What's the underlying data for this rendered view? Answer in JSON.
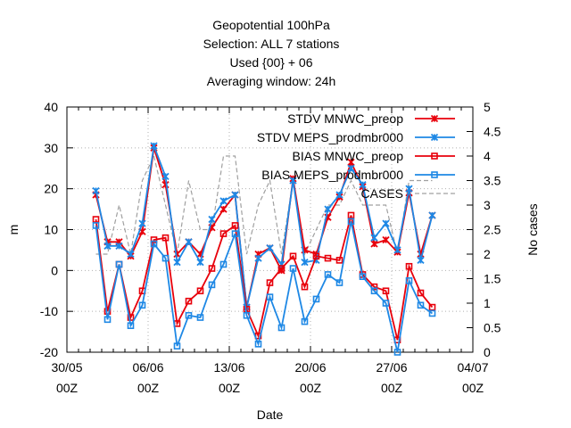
{
  "chart_data": {
    "type": "line",
    "title_lines": [
      "Geopotential 100hPa",
      "Selection: ALL      7 stations",
      "Used {00} + 06",
      "Averaging window: 24h"
    ],
    "xlabel": "Date",
    "ylabel": "m",
    "y2label": "No cases",
    "x_ticks": [
      {
        "d": 0,
        "l1": "30/05",
        "l2": "00Z"
      },
      {
        "d": 7,
        "l1": "06/06",
        "l2": "00Z"
      },
      {
        "d": 14,
        "l1": "13/06",
        "l2": "00Z"
      },
      {
        "d": 21,
        "l1": "20/06",
        "l2": "00Z"
      },
      {
        "d": 28,
        "l1": "27/06",
        "l2": "00Z"
      },
      {
        "d": 35,
        "l1": "04/07",
        "l2": "00Z"
      }
    ],
    "xlim": [
      0,
      35
    ],
    "ylim": [
      -20,
      40
    ],
    "y_ticks": [
      -20,
      -10,
      0,
      10,
      20,
      30,
      40
    ],
    "y2lim": [
      0,
      5
    ],
    "y2_ticks": [
      "0",
      "0.5",
      "1",
      "1.5",
      "2",
      "2.5",
      "3",
      "3.5",
      "4",
      "4.5",
      "5"
    ],
    "grid": true,
    "legend_position": "top-right",
    "x_days": [
      2.5,
      3.5,
      4.5,
      5.5,
      6.5,
      7.5,
      8.5,
      9.5,
      10.5,
      11.5,
      12.5,
      13.5,
      14.5,
      15.5,
      16.5,
      17.5,
      18.5,
      19.5,
      20.5,
      21.5,
      22.5,
      23.5,
      24.5,
      25.5,
      26.5,
      27.5,
      28.5,
      29.5,
      30.5,
      31.5
    ],
    "series": [
      {
        "name": "STDV MNWC_preop",
        "color": "#e8000b",
        "marker": "star",
        "values": [
          18.5,
          7,
          7,
          3.5,
          9.5,
          30,
          21,
          4,
          7,
          4,
          10.5,
          15,
          18.5,
          -9,
          4,
          5.5,
          0,
          22.5,
          5,
          4,
          13,
          18,
          26.5,
          20.5,
          6.5,
          7.5,
          4.5,
          19,
          4,
          13.5
        ]
      },
      {
        "name": "STDV MEPS_prodmbr000",
        "color": "#1e88e5",
        "marker": "star",
        "values": [
          19.5,
          6,
          6,
          4,
          11.5,
          30.5,
          23,
          2,
          7,
          2,
          12.5,
          17,
          18.5,
          -9,
          3,
          5.5,
          1.5,
          22,
          2,
          2.5,
          15,
          18.5,
          25,
          21,
          8,
          11.5,
          5,
          20,
          2.5,
          13.5
        ]
      },
      {
        "name": "BIAS MNWC_preop",
        "color": "#e8000b",
        "marker": "square",
        "values": [
          12.5,
          -10,
          1.5,
          -11.5,
          -5,
          7.5,
          8,
          -13,
          -7.5,
          -5,
          0.5,
          9,
          11,
          -9.5,
          -16,
          -3,
          0.5,
          3.5,
          -4,
          3.5,
          3,
          2.5,
          13.5,
          -1,
          -4,
          -5,
          -17,
          1,
          -5.5,
          -9
        ]
      },
      {
        "name": "BIAS MEPS_prodmbr000",
        "color": "#1e88e5",
        "marker": "square",
        "values": [
          11,
          -12,
          1.5,
          -13.5,
          -8.5,
          6.5,
          3,
          -18.5,
          -11,
          -11.5,
          -3.5,
          1.5,
          9,
          -11,
          -18,
          -6.5,
          -14,
          0.5,
          -12.5,
          -7,
          -1,
          -3,
          12,
          -1.5,
          -5,
          -8,
          -20,
          -2.5,
          -8.5,
          -10.5
        ]
      },
      {
        "name": "CASES",
        "color": "#a0a0a0",
        "axis": "y2",
        "dashed": true,
        "values": [
          2,
          2,
          3,
          2,
          3.5,
          4,
          3,
          2,
          3.5,
          2.5,
          2.5,
          4,
          4,
          2,
          3,
          3.5,
          2,
          3.5,
          2,
          2.5,
          3,
          3,
          3.5,
          3,
          3,
          3,
          2,
          3.5,
          3.5,
          3.5
        ]
      }
    ]
  }
}
